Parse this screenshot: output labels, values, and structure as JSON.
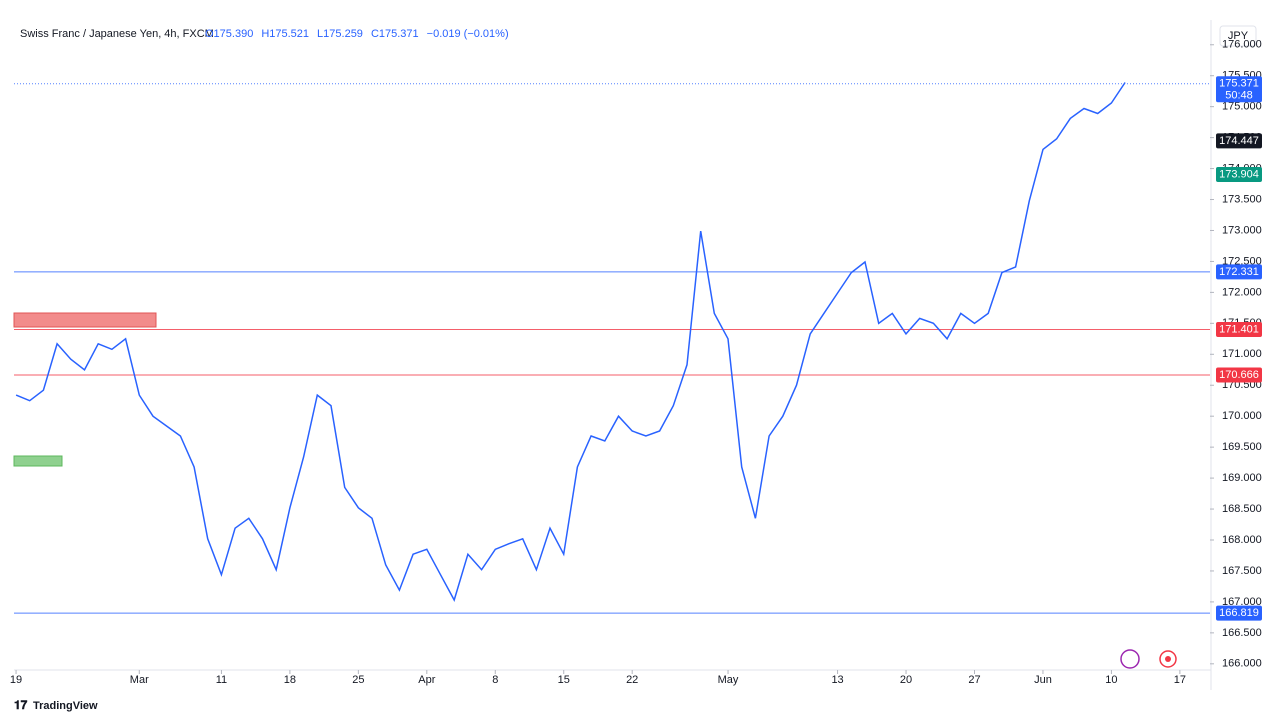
{
  "chart_data": {
    "type": "line",
    "title": "Swiss Franc / Japanese Yen, 4h, FXCM",
    "ohlc": [
      "O175.390",
      "H175.521",
      "L175.259",
      "C175.371",
      "−0.019 (−0.01%)"
    ],
    "currency": "JPY",
    "brand": "TradingView",
    "countdown": "50:48",
    "color": "#2962ff",
    "x": [
      0,
      1,
      2,
      3,
      4,
      5,
      6,
      7,
      8,
      9,
      10,
      11,
      12,
      13,
      14,
      15,
      16,
      17,
      18,
      19,
      20,
      21,
      22,
      23,
      24,
      25,
      26,
      27,
      28,
      29,
      30,
      31,
      32,
      33,
      34,
      35,
      36,
      37,
      38,
      39,
      40,
      41,
      42,
      43,
      44,
      45,
      46,
      47,
      48,
      49,
      50,
      51,
      52,
      53,
      54,
      55,
      56,
      57,
      58,
      59,
      60,
      61,
      62,
      63,
      64,
      65,
      66,
      67,
      68,
      69,
      70,
      71,
      72,
      73,
      74,
      75,
      76,
      77,
      78,
      79,
      80,
      81
    ],
    "values": [
      170.34,
      170.25,
      170.42,
      171.17,
      170.92,
      170.75,
      171.17,
      171.08,
      171.25,
      170.34,
      170.0,
      169.84,
      169.68,
      169.18,
      168.02,
      167.44,
      168.19,
      168.35,
      168.02,
      167.52,
      168.52,
      169.34,
      170.34,
      170.17,
      168.85,
      168.52,
      168.35,
      167.6,
      167.19,
      167.77,
      167.85,
      167.44,
      167.03,
      167.77,
      167.52,
      167.85,
      167.94,
      168.02,
      167.52,
      168.19,
      167.77,
      169.18,
      169.68,
      169.6,
      170.0,
      169.76,
      169.68,
      169.76,
      170.17,
      170.83,
      172.99,
      171.66,
      171.25,
      169.18,
      168.35,
      169.68,
      170.0,
      170.5,
      171.33,
      171.66,
      171.99,
      172.32,
      172.49,
      171.5,
      171.66,
      171.33,
      171.58,
      171.5,
      171.25,
      171.66,
      171.5,
      171.66,
      172.32,
      172.41,
      173.48,
      174.31,
      174.48,
      174.81,
      174.97,
      174.89,
      175.06,
      175.39
    ],
    "xlim": [
      -0.15,
      87.2
    ],
    "xticks": [
      {
        "value": 0,
        "label": "19"
      },
      {
        "value": 9,
        "label": "Mar"
      },
      {
        "value": 15,
        "label": "11"
      },
      {
        "value": 20,
        "label": "18"
      },
      {
        "value": 25,
        "label": "25"
      },
      {
        "value": 30,
        "label": "Apr"
      },
      {
        "value": 35,
        "label": "8"
      },
      {
        "value": 40,
        "label": "15"
      },
      {
        "value": 45,
        "label": "22"
      },
      {
        "value": 52,
        "label": "May"
      },
      {
        "value": 60,
        "label": "13"
      },
      {
        "value": 65,
        "label": "20"
      },
      {
        "value": 70,
        "label": "27"
      },
      {
        "value": 75,
        "label": "Jun"
      },
      {
        "value": 80,
        "label": "10"
      },
      {
        "value": 85,
        "label": "17"
      }
    ],
    "ylim": [
      165.9,
      176.4
    ],
    "yticks": [
      {
        "value": 166,
        "label": "166.000"
      },
      {
        "value": 166.5,
        "label": "166.500"
      },
      {
        "value": 167,
        "label": "167.000"
      },
      {
        "value": 167.5,
        "label": "167.500"
      },
      {
        "value": 168,
        "label": "168.000"
      },
      {
        "value": 168.5,
        "label": "168.500"
      },
      {
        "value": 169,
        "label": "169.000"
      },
      {
        "value": 169.5,
        "label": "169.500"
      },
      {
        "value": 170,
        "label": "170.000"
      },
      {
        "value": 170.5,
        "label": "170.500"
      },
      {
        "value": 171,
        "label": "171.000"
      },
      {
        "value": 171.5,
        "label": "171.500"
      },
      {
        "value": 172,
        "label": "172.000"
      },
      {
        "value": 172.5,
        "label": "172.500"
      },
      {
        "value": 173,
        "label": "173.000"
      },
      {
        "value": 173.5,
        "label": "173.500"
      },
      {
        "value": 174,
        "label": "174.000"
      },
      {
        "value": 174.5,
        "label": "174.500"
      },
      {
        "value": 175,
        "label": "175.000"
      },
      {
        "value": 175.5,
        "label": "175.500"
      },
      {
        "value": 176,
        "label": "176.000"
      }
    ],
    "price_labels": [
      {
        "value": 175.371,
        "label": "175.371",
        "color": "#2962ff",
        "line": "dotted"
      },
      {
        "value": 174.447,
        "label": "174.447",
        "color": "#131722",
        "line": "none"
      },
      {
        "value": 173.904,
        "label": "173.904",
        "color": "#089981",
        "line": "none"
      },
      {
        "value": 172.331,
        "label": "172.331",
        "color": "#2962ff",
        "line": "solid"
      },
      {
        "value": 171.401,
        "label": "171.401",
        "color": "#f23645",
        "line": "solid"
      },
      {
        "value": 170.666,
        "label": "170.666",
        "color": "#f23645",
        "line": "solid"
      },
      {
        "value": 166.819,
        "label": "166.819",
        "color": "#2962ff",
        "line": "solid"
      }
    ]
  }
}
